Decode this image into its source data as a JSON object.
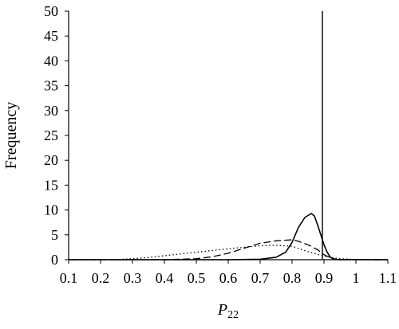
{
  "chart_data": {
    "type": "line",
    "xlabel_main": "P",
    "xlabel_sub": "22",
    "ylabel": "Frequency",
    "xlim": [
      0.1,
      1.1
    ],
    "ylim": [
      0,
      50
    ],
    "x_ticks": [
      "0.1",
      "0.2",
      "0.3",
      "0.4",
      "0.5",
      "0.6",
      "0.7",
      "0.8",
      "0.9",
      "1",
      "1.1"
    ],
    "y_ticks": [
      "0",
      "5",
      "10",
      "15",
      "20",
      "25",
      "30",
      "35",
      "40",
      "45",
      "50"
    ],
    "grid": false,
    "reference_line_x": 0.895,
    "series": [
      {
        "style": "solid",
        "x": [
          0.1,
          0.6,
          0.7,
          0.75,
          0.78,
          0.8,
          0.82,
          0.84,
          0.86,
          0.87,
          0.88,
          0.89,
          0.9,
          0.91,
          0.92,
          0.93,
          0.95,
          1.1
        ],
        "y": [
          0,
          0,
          0.1,
          0.5,
          1.5,
          3.5,
          6.5,
          8.5,
          9.3,
          8.8,
          7,
          5,
          3,
          1.5,
          0.5,
          0.1,
          0,
          0
        ]
      },
      {
        "style": "dashed",
        "x": [
          0.1,
          0.4,
          0.5,
          0.55,
          0.6,
          0.65,
          0.7,
          0.75,
          0.8,
          0.82,
          0.85,
          0.88,
          0.9,
          0.92,
          0.94,
          1.1
        ],
        "y": [
          0,
          0,
          0.2,
          0.6,
          1.3,
          2.3,
          3.3,
          3.8,
          4.0,
          3.7,
          3.0,
          2.0,
          1.0,
          0.4,
          0.05,
          0
        ]
      },
      {
        "style": "dotted",
        "x": [
          0.1,
          0.25,
          0.3,
          0.35,
          0.4,
          0.5,
          0.6,
          0.7,
          0.75,
          0.8,
          0.85,
          0.9,
          0.95,
          1.0,
          1.1
        ],
        "y": [
          0,
          0,
          0.2,
          0.45,
          0.8,
          1.5,
          2.2,
          2.8,
          2.9,
          2.7,
          1.6,
          0.7,
          0.2,
          0.05,
          0
        ]
      }
    ]
  }
}
